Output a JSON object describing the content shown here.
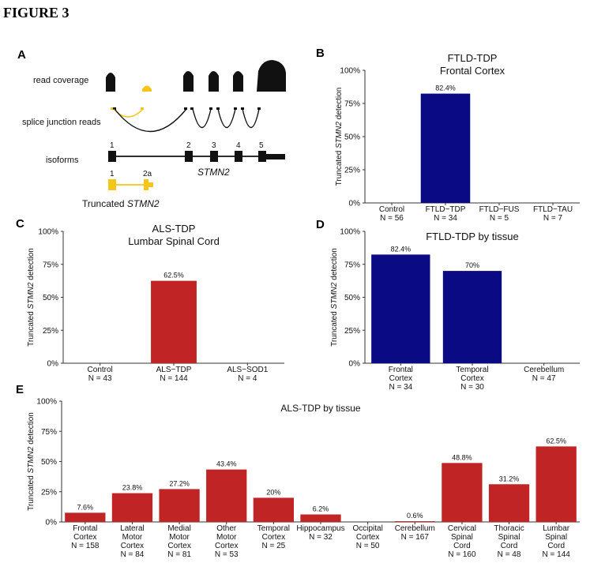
{
  "figure_title": "FIGURE 3",
  "panel_a": {
    "label": "A",
    "row_labels": [
      "read coverage",
      "splice junction reads",
      "isoforms"
    ],
    "exon_numbers": [
      "1",
      "2",
      "3",
      "4",
      "5"
    ],
    "gene_label": "STMN2",
    "truncated_exon_numbers": [
      "1",
      "2a"
    ],
    "truncated_label_prefix": "Truncated ",
    "truncated_label_gene": "STMN2",
    "colors": {
      "normal": "#111111",
      "truncated": "#f5c518"
    }
  },
  "chart_data": [
    {
      "panel": "B",
      "type": "bar",
      "title": "FTLD-TDP",
      "subtitle": "Frontal Cortex",
      "ylabel_prefix": "Truncated ",
      "ylabel_gene": "STMN2",
      "ylabel_suffix": " detection",
      "ylim": [
        0,
        100
      ],
      "yticks": [
        "0%",
        "25%",
        "50%",
        "75%",
        "100%"
      ],
      "categories": [
        "Control",
        "FTLD−TDP",
        "FTLD−FUS",
        "FTLD−TAU"
      ],
      "n_labels": [
        "N = 56",
        "N = 34",
        "N = 5",
        "N = 7"
      ],
      "values": [
        0,
        82.4,
        0,
        0
      ],
      "value_labels": [
        "",
        "82.4%",
        "",
        ""
      ],
      "color": "#0a0a84"
    },
    {
      "panel": "C",
      "type": "bar",
      "title": "ALS-TDP",
      "subtitle": "Lumbar Spinal Cord",
      "ylabel_prefix": "Truncated ",
      "ylabel_gene": "STMN2",
      "ylabel_suffix": " detection",
      "ylim": [
        0,
        100
      ],
      "yticks": [
        "0%",
        "25%",
        "50%",
        "75%",
        "100%"
      ],
      "categories": [
        "Control",
        "ALS−TDP",
        "ALS−SOD1"
      ],
      "n_labels": [
        "N = 43",
        "N = 144",
        "N = 4"
      ],
      "values": [
        0,
        62.5,
        0
      ],
      "value_labels": [
        "",
        "62.5%",
        ""
      ],
      "color": "#c02424"
    },
    {
      "panel": "D",
      "type": "bar",
      "title": "FTLD-TDP by tissue",
      "ylabel_prefix": "Truncated ",
      "ylabel_gene": "STMN2",
      "ylabel_suffix": " detection",
      "ylim": [
        0,
        100
      ],
      "yticks": [
        "0%",
        "25%",
        "50%",
        "75%",
        "100%"
      ],
      "categories": [
        "Frontal\nCortex",
        "Temporal\nCortex",
        "Cerebellum"
      ],
      "n_labels": [
        "N = 34",
        "N = 30",
        "N = 47"
      ],
      "values": [
        82.4,
        70,
        0
      ],
      "value_labels": [
        "82.4%",
        "70%",
        ""
      ],
      "color": "#0a0a84"
    },
    {
      "panel": "E",
      "type": "bar",
      "title": "ALS-TDP by tissue",
      "ylabel_prefix": "Truncated ",
      "ylabel_gene": "STMN2",
      "ylabel_suffix": " detection",
      "ylim": [
        0,
        100
      ],
      "yticks": [
        "0%",
        "25%",
        "50%",
        "75%",
        "100%"
      ],
      "categories": [
        "Frontal\nCortex",
        "Lateral\nMotor\nCortex",
        "Medial\nMotor\nCortex",
        "Other\nMotor\nCortex",
        "Temporal\nCortex",
        "Hippocampus",
        "Occipital\nCortex",
        "Cerebellum",
        "Cervical\nSpinal\nCord",
        "Thoracic\nSpinal\nCord",
        "Lumbar\nSpinal\nCord"
      ],
      "n_labels": [
        "N = 158",
        "N = 84",
        "N = 81",
        "N = 53",
        "N = 25",
        "N = 32",
        "N = 50",
        "N = 167",
        "N = 160",
        "N = 48",
        "N = 144"
      ],
      "values": [
        7.6,
        23.8,
        27.2,
        43.4,
        20,
        6.2,
        0,
        0.6,
        48.8,
        31.2,
        62.5
      ],
      "value_labels": [
        "7.6%",
        "23.8%",
        "27.2%",
        "43.4%",
        "20%",
        "6.2%",
        "",
        "0.6%",
        "48.8%",
        "31.2%",
        "62.5%"
      ],
      "color": "#c02424"
    }
  ]
}
